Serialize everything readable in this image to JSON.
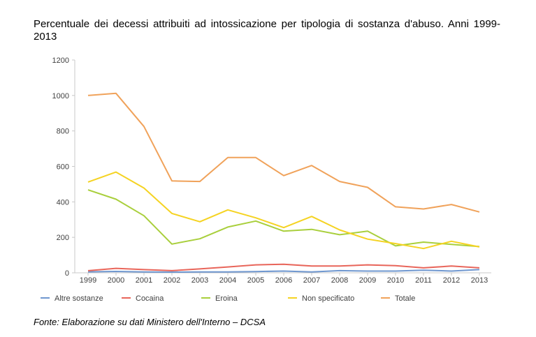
{
  "title": "Percentuale dei decessi attribuiti ad intossicazione per tipologia di sostanza d'abuso. Anni 1999-2013",
  "source": "Fonte: Elaborazione su dati Ministero dell'Interno – DCSA",
  "chart_data": {
    "type": "line",
    "title": "",
    "xlabel": "",
    "ylabel": "",
    "ylim": [
      0,
      1200
    ],
    "yticks": [
      0,
      200,
      400,
      600,
      800,
      1000,
      1200
    ],
    "grid": false,
    "legend_position": "bottom",
    "x": [
      "1999",
      "2000",
      "2001",
      "2002",
      "2003",
      "2004",
      "2005",
      "2006",
      "2007",
      "2008",
      "2009",
      "2010",
      "2011",
      "2012",
      "2013"
    ],
    "series": [
      {
        "name": "Altre sostanze",
        "color": "#6f97cf",
        "values": [
          5,
          8,
          5,
          4,
          5,
          5,
          7,
          10,
          5,
          12,
          10,
          10,
          15,
          10,
          18
        ]
      },
      {
        "name": "Cocaina",
        "color": "#e8655a",
        "values": [
          12,
          25,
          18,
          12,
          22,
          33,
          45,
          48,
          38,
          38,
          45,
          40,
          28,
          38,
          28
        ]
      },
      {
        "name": "Eroina",
        "color": "#a9cf3c",
        "values": [
          468,
          415,
          322,
          162,
          192,
          258,
          292,
          235,
          245,
          215,
          235,
          152,
          173,
          160,
          148
        ]
      },
      {
        "name": "Non specificato",
        "color": "#f5d322",
        "values": [
          512,
          568,
          478,
          335,
          288,
          355,
          310,
          255,
          318,
          242,
          190,
          165,
          137,
          178,
          146
        ]
      },
      {
        "name": "Totale",
        "color": "#f0a25a",
        "values": [
          1000,
          1012,
          825,
          518,
          515,
          650,
          650,
          548,
          605,
          515,
          482,
          372,
          360,
          385,
          343
        ]
      }
    ]
  }
}
